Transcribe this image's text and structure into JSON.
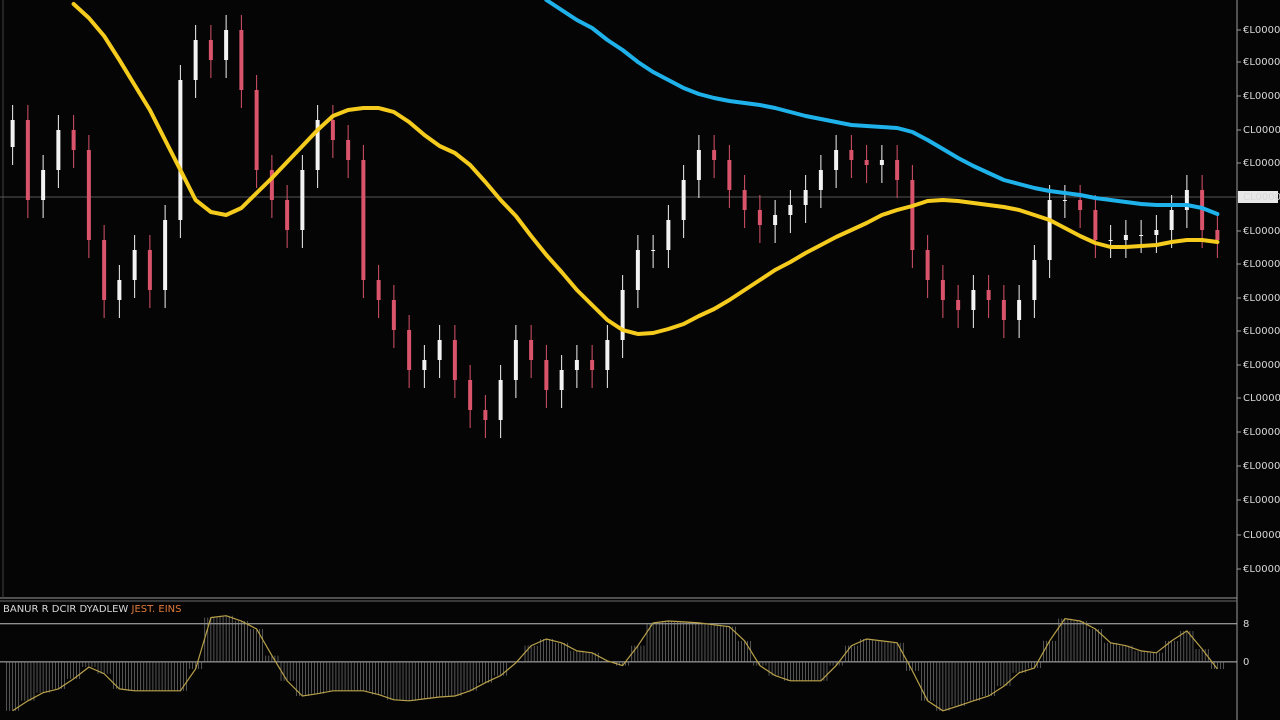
{
  "chart_data": {
    "type": "candlestick",
    "categories": [
      null,
      null,
      null,
      null,
      null,
      null,
      null,
      null,
      null,
      null,
      null,
      null,
      null,
      null,
      null,
      null,
      null,
      null,
      null,
      null,
      null,
      null,
      null,
      null,
      null,
      null,
      null,
      null,
      null,
      null,
      null,
      null,
      null,
      null,
      null,
      null,
      null,
      null,
      null,
      null,
      null,
      null,
      null,
      null,
      null,
      null,
      null,
      null,
      null,
      null,
      null,
      null,
      null,
      null,
      null,
      null,
      null,
      null,
      null,
      null,
      null,
      null,
      null,
      null,
      null,
      null,
      null,
      null,
      null,
      null,
      null,
      null,
      null,
      null,
      null,
      null,
      null,
      null,
      null,
      null
    ],
    "open": [
      450,
      477,
      397,
      427,
      467,
      447,
      357,
      297,
      317,
      347,
      307,
      377,
      517,
      557,
      537,
      567,
      507,
      427,
      397,
      367,
      427,
      477,
      457,
      437,
      317,
      297,
      267,
      227,
      237,
      257,
      217,
      187,
      177,
      217,
      257,
      237,
      207,
      227,
      237,
      227,
      257,
      307,
      347,
      347,
      377,
      417,
      447,
      437,
      407,
      387,
      372,
      382,
      392,
      407,
      427,
      447,
      437,
      432,
      437,
      417,
      347,
      317,
      297,
      287,
      307,
      297,
      277,
      297,
      337,
      397,
      397,
      387,
      357,
      357,
      362,
      362,
      367,
      387,
      407,
      367
    ],
    "high": [
      492,
      492,
      442,
      482,
      482,
      462,
      372,
      332,
      362,
      362,
      392,
      532,
      572,
      572,
      582,
      582,
      522,
      442,
      412,
      442,
      492,
      492,
      472,
      452,
      332,
      312,
      282,
      252,
      272,
      272,
      232,
      202,
      232,
      272,
      272,
      252,
      242,
      252,
      252,
      272,
      322,
      362,
      362,
      392,
      432,
      462,
      462,
      452,
      422,
      402,
      397,
      407,
      422,
      442,
      462,
      462,
      452,
      452,
      452,
      432,
      362,
      332,
      312,
      322,
      322,
      312,
      312,
      352,
      412,
      412,
      412,
      402,
      372,
      377,
      377,
      382,
      402,
      422,
      422,
      382
    ],
    "low": [
      432,
      379,
      379,
      409,
      429,
      339,
      279,
      279,
      299,
      289,
      289,
      359,
      499,
      519,
      519,
      489,
      409,
      379,
      349,
      349,
      409,
      439,
      419,
      299,
      279,
      249,
      209,
      209,
      219,
      199,
      169,
      159,
      159,
      199,
      219,
      189,
      189,
      209,
      209,
      209,
      239,
      289,
      329,
      329,
      359,
      399,
      419,
      389,
      369,
      354,
      354,
      364,
      374,
      389,
      409,
      419,
      414,
      414,
      399,
      329,
      299,
      279,
      269,
      269,
      279,
      259,
      259,
      279,
      319,
      379,
      369,
      339,
      339,
      339,
      344,
      344,
      349,
      369,
      349,
      339
    ],
    "close": [
      477,
      397,
      427,
      467,
      447,
      357,
      297,
      317,
      347,
      307,
      377,
      517,
      557,
      537,
      567,
      507,
      427,
      397,
      367,
      427,
      477,
      457,
      437,
      317,
      297,
      267,
      227,
      237,
      257,
      217,
      187,
      177,
      217,
      257,
      237,
      207,
      227,
      237,
      227,
      257,
      307,
      347,
      347,
      377,
      417,
      447,
      437,
      407,
      387,
      372,
      382,
      392,
      407,
      427,
      447,
      437,
      432,
      437,
      417,
      347,
      317,
      297,
      287,
      307,
      297,
      277,
      297,
      337,
      397,
      397,
      387,
      357,
      357,
      362,
      362,
      367,
      387,
      407,
      367,
      357
    ],
    "up_color": "#f2f2f2",
    "down_color": "#d9536b",
    "series": [
      {
        "color": "#f5cc1d",
        "values": [
          null,
          null,
          null,
          null,
          593,
          579,
          561,
          537,
          512,
          487,
          457,
          427,
          397,
          385,
          382,
          389,
          404,
          419,
          435,
          451,
          467,
          481,
          487,
          489,
          489,
          485,
          475,
          462,
          451,
          444,
          432,
          415,
          397,
          381,
          361,
          342,
          325,
          307,
          292,
          277,
          267,
          263,
          264,
          268,
          273,
          281,
          288,
          297,
          307,
          317,
          327,
          335,
          344,
          352,
          360,
          367,
          374,
          382,
          387,
          391,
          396,
          397,
          396,
          394,
          392,
          390,
          387,
          382,
          377,
          369,
          361,
          354,
          350,
          350,
          351,
          352,
          355,
          357,
          357,
          355
        ]
      },
      {
        "color": "#1fb2ea",
        "values": [
          null,
          null,
          null,
          null,
          null,
          null,
          null,
          null,
          null,
          null,
          null,
          null,
          null,
          null,
          null,
          null,
          null,
          null,
          null,
          null,
          null,
          null,
          null,
          null,
          null,
          null,
          null,
          null,
          null,
          null,
          null,
          null,
          null,
          null,
          null,
          597,
          587,
          577,
          569,
          557,
          547,
          535,
          525,
          517,
          509,
          503,
          499,
          496,
          494,
          492,
          489,
          485,
          481,
          478,
          475,
          472,
          471,
          470,
          469,
          465,
          457,
          448,
          439,
          431,
          424,
          417,
          413,
          409,
          406,
          404,
          402,
          399,
          397,
          395,
          393,
          392,
          392,
          392,
          389,
          383
        ]
      }
    ],
    "ylim": [
      0,
      597
    ],
    "yticks": [
      {
        "value": 567,
        "label": "€L0000"
      },
      {
        "value": 535,
        "label": "€L0000"
      },
      {
        "value": 501,
        "label": "€L0000"
      },
      {
        "value": 467,
        "label": "CL0000"
      },
      {
        "value": 434,
        "label": "€L0000"
      },
      {
        "value": 366,
        "label": "€L0000"
      },
      {
        "value": 333,
        "label": "€L0000"
      },
      {
        "value": 299,
        "label": "€L0000"
      },
      {
        "value": 266,
        "label": "€L0000"
      },
      {
        "value": 232,
        "label": "€L0000"
      },
      {
        "value": 199,
        "label": "CL0000"
      },
      {
        "value": 165,
        "label": "€L0000"
      },
      {
        "value": 131,
        "label": "€L0000"
      },
      {
        "value": 97,
        "label": "€L0000"
      },
      {
        "value": 62,
        "label": "CL0000"
      },
      {
        "value": 28,
        "label": "€L0000"
      }
    ],
    "current_price": {
      "value": 400,
      "label": "CL0000"
    },
    "indicator": {
      "type": "line",
      "title": "BANUR R DCIR DYADLEW",
      "title_highlight": "JEST. EINS",
      "color": "#b8a14a",
      "values": [
        -10.3,
        -8.2,
        -6.5,
        -5.7,
        -3.6,
        -1.1,
        -2.5,
        -5.7,
        -6.1,
        -6.1,
        -6.1,
        -6.1,
        -1.5,
        9.3,
        9.7,
        8.6,
        6.9,
        1.3,
        -4,
        -7.2,
        -6.7,
        -6.1,
        -6.1,
        -6.1,
        -6.9,
        -8,
        -8.2,
        -7.8,
        -7.4,
        -7.2,
        -6.1,
        -4.4,
        -2.9,
        -0.2,
        3.4,
        4.8,
        4,
        2.3,
        1.9,
        0.2,
        -0.8,
        3.4,
        8.2,
        8.6,
        8.4,
        8.2,
        7.8,
        7.4,
        4.4,
        -0.8,
        -2.9,
        -4,
        -4,
        -4,
        -0.8,
        3.4,
        4.8,
        4.4,
        4,
        -1.9,
        -8.2,
        -10.3,
        -9.3,
        -8.2,
        -7.2,
        -5.1,
        -2.3,
        -1.3,
        4.4,
        9.1,
        8.6,
        6.9,
        4,
        3.4,
        2.3,
        1.9,
        4.4,
        6.5,
        2.7,
        -1.5
      ],
      "ylim": [
        -11.4,
        12.8
      ],
      "yticks": [
        8,
        0
      ]
    }
  }
}
